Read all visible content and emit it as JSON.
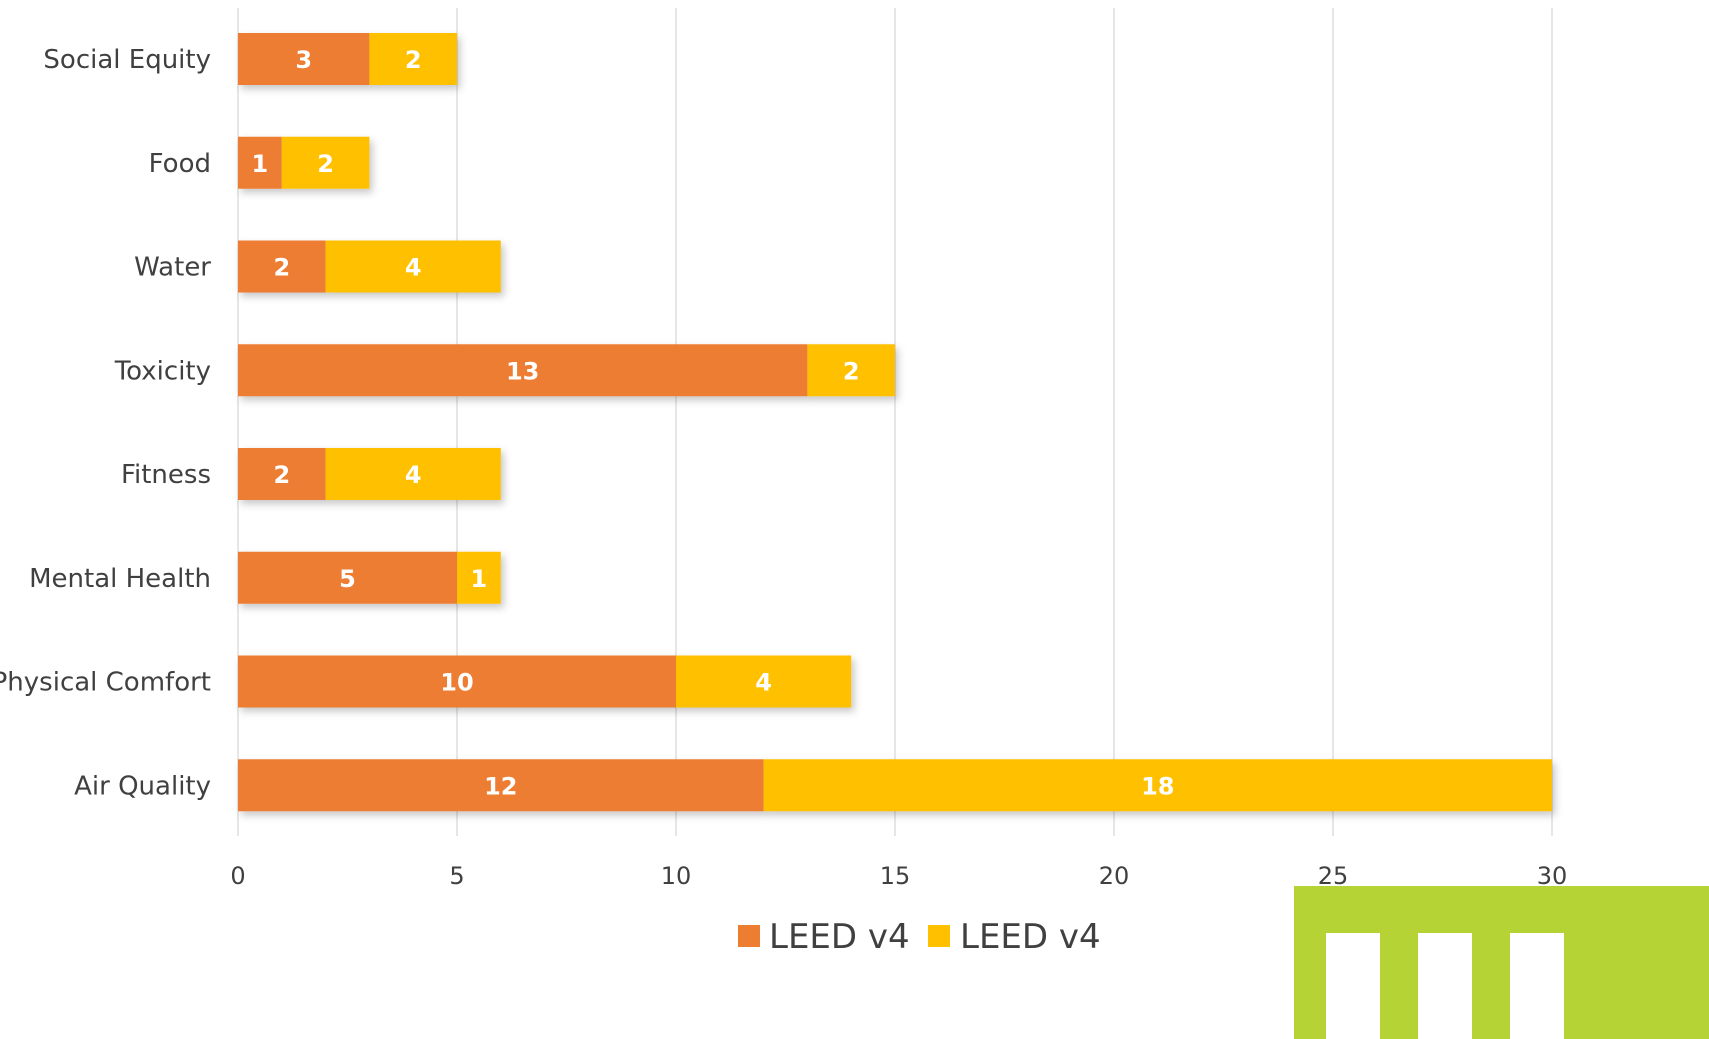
{
  "chart_data": {
    "type": "bar",
    "orientation": "horizontal",
    "stacked": true,
    "categories": [
      "Social Equity",
      "Food",
      "Water",
      "Toxicity",
      "Fitness",
      "Mental Health",
      "Physical Comfort",
      "Air Quality"
    ],
    "series": [
      {
        "name": "LEED v4",
        "color": "#ED7D31",
        "values": [
          3,
          1,
          2,
          13,
          2,
          5,
          10,
          12
        ]
      },
      {
        "name": "LEED v4",
        "color": "#FFC000",
        "values": [
          2,
          2,
          4,
          2,
          4,
          1,
          4,
          18
        ]
      }
    ],
    "xlim": [
      0,
      30
    ],
    "xticks": [
      0,
      5,
      10,
      15,
      20,
      25,
      30
    ],
    "grid": true,
    "data_labels": true,
    "legend_position": "bottom",
    "title": "",
    "xlabel": "",
    "ylabel": ""
  },
  "logo": {
    "color": "#B5D334"
  }
}
